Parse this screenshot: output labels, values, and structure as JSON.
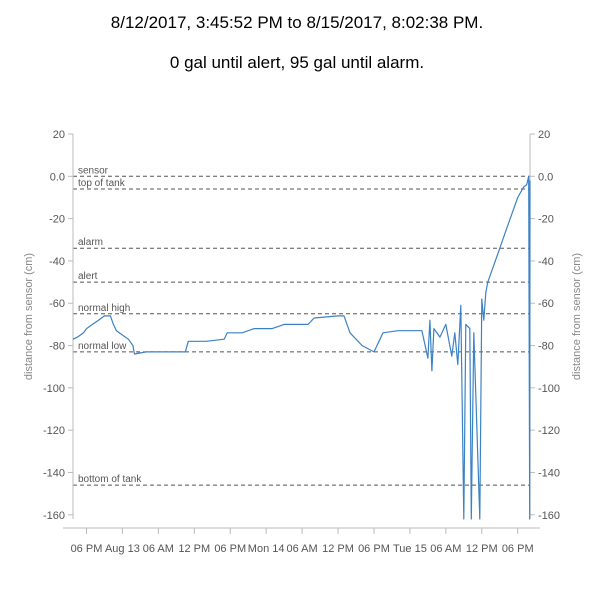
{
  "header": {
    "line1": "8/12/2017, 3:45:52 PM to 8/15/2017, 8:02:38 PM.",
    "line2": "0 gal until alert, 95 gal until alarm."
  },
  "chart_data": {
    "type": "line",
    "title": "",
    "ylabel_left": "distance from sensor (cm)",
    "ylabel_right": "distance from sensor (cm)",
    "ylim": [
      -162,
      20
    ],
    "yticks": [
      20,
      0.0,
      -20,
      -40,
      -60,
      -80,
      -100,
      -120,
      -140,
      -160
    ],
    "ytick_labels": [
      "20",
      "0.0",
      "-20",
      "-40",
      "-60",
      "-80",
      "-100",
      "-120",
      "-140",
      "-160"
    ],
    "xlim": [
      "2017-08-12T15:45",
      "2017-08-15T20:03"
    ],
    "xticks": [
      {
        "t": "2017-08-12T18:00",
        "label": "06 PM"
      },
      {
        "t": "2017-08-13T00:00",
        "label": "Aug 13"
      },
      {
        "t": "2017-08-13T06:00",
        "label": "06 AM"
      },
      {
        "t": "2017-08-13T12:00",
        "label": "12 PM"
      },
      {
        "t": "2017-08-13T18:00",
        "label": "06 PM"
      },
      {
        "t": "2017-08-14T00:00",
        "label": "Mon 14"
      },
      {
        "t": "2017-08-14T06:00",
        "label": "06 AM"
      },
      {
        "t": "2017-08-14T12:00",
        "label": "12 PM"
      },
      {
        "t": "2017-08-14T18:00",
        "label": "06 PM"
      },
      {
        "t": "2017-08-15T00:00",
        "label": "Tue 15"
      },
      {
        "t": "2017-08-15T06:00",
        "label": "06 AM"
      },
      {
        "t": "2017-08-15T12:00",
        "label": "12 PM"
      },
      {
        "t": "2017-08-15T18:00",
        "label": "06 PM"
      }
    ],
    "reference_lines": [
      {
        "label": "sensor",
        "y": 0
      },
      {
        "label": "top of tank",
        "y": -6
      },
      {
        "label": "alarm",
        "y": -34
      },
      {
        "label": "alert",
        "y": -50
      },
      {
        "label": "normal high",
        "y": -65
      },
      {
        "label": "normal low",
        "y": -83
      },
      {
        "label": "bottom of tank",
        "y": -146
      }
    ],
    "series": [
      {
        "color": "#3b82c4",
        "points": [
          [
            "2017-08-12T15:45",
            -77
          ],
          [
            "2017-08-12T16:30",
            -76
          ],
          [
            "2017-08-12T17:30",
            -74
          ],
          [
            "2017-08-12T18:00",
            -72
          ],
          [
            "2017-08-12T19:00",
            -70
          ],
          [
            "2017-08-12T20:00",
            -68
          ],
          [
            "2017-08-12T21:00",
            -66
          ],
          [
            "2017-08-12T22:00",
            -66
          ],
          [
            "2017-08-12T22:30",
            -70
          ],
          [
            "2017-08-12T23:00",
            -73
          ],
          [
            "2017-08-13T00:00",
            -75
          ],
          [
            "2017-08-13T01:00",
            -77
          ],
          [
            "2017-08-13T01:45",
            -80
          ],
          [
            "2017-08-13T02:00",
            -84
          ],
          [
            "2017-08-13T04:00",
            -83
          ],
          [
            "2017-08-13T08:00",
            -83
          ],
          [
            "2017-08-13T10:30",
            -83
          ],
          [
            "2017-08-13T11:00",
            -78
          ],
          [
            "2017-08-13T14:00",
            -78
          ],
          [
            "2017-08-13T17:00",
            -77
          ],
          [
            "2017-08-13T17:30",
            -74
          ],
          [
            "2017-08-13T20:00",
            -74
          ],
          [
            "2017-08-13T22:00",
            -72
          ],
          [
            "2017-08-14T01:00",
            -72
          ],
          [
            "2017-08-14T03:00",
            -70
          ],
          [
            "2017-08-14T07:00",
            -70
          ],
          [
            "2017-08-14T08:00",
            -67
          ],
          [
            "2017-08-14T12:00",
            -66
          ],
          [
            "2017-08-14T13:00",
            -66
          ],
          [
            "2017-08-14T14:00",
            -74
          ],
          [
            "2017-08-14T16:00",
            -80
          ],
          [
            "2017-08-14T18:00",
            -83
          ],
          [
            "2017-08-14T19:30",
            -74
          ],
          [
            "2017-08-14T22:00",
            -73
          ],
          [
            "2017-08-15T02:00",
            -73
          ],
          [
            "2017-08-15T03:00",
            -86
          ],
          [
            "2017-08-15T03:20",
            -68
          ],
          [
            "2017-08-15T03:40",
            -92
          ],
          [
            "2017-08-15T04:00",
            -72
          ],
          [
            "2017-08-15T05:00",
            -76
          ],
          [
            "2017-08-15T06:00",
            -70
          ],
          [
            "2017-08-15T07:00",
            -85
          ],
          [
            "2017-08-15T07:30",
            -74
          ],
          [
            "2017-08-15T08:00",
            -89
          ],
          [
            "2017-08-15T08:30",
            -61
          ],
          [
            "2017-08-15T09:00",
            -162
          ],
          [
            "2017-08-15T09:20",
            -70
          ],
          [
            "2017-08-15T10:00",
            -72
          ],
          [
            "2017-08-15T10:15",
            -162
          ],
          [
            "2017-08-15T10:40",
            -74
          ],
          [
            "2017-08-15T11:40",
            -162
          ],
          [
            "2017-08-15T12:00",
            -58
          ],
          [
            "2017-08-15T12:20",
            -68
          ],
          [
            "2017-08-15T12:40",
            -55
          ],
          [
            "2017-08-15T13:00",
            -50
          ],
          [
            "2017-08-15T14:00",
            -42
          ],
          [
            "2017-08-15T15:00",
            -34
          ],
          [
            "2017-08-15T16:00",
            -26
          ],
          [
            "2017-08-15T17:00",
            -18
          ],
          [
            "2017-08-15T18:00",
            -10
          ],
          [
            "2017-08-15T19:00",
            -5
          ],
          [
            "2017-08-15T19:30",
            -4
          ],
          [
            "2017-08-15T19:50",
            0
          ],
          [
            "2017-08-15T20:00",
            -162
          ],
          [
            "2017-08-15T20:03",
            -2
          ]
        ]
      }
    ]
  }
}
